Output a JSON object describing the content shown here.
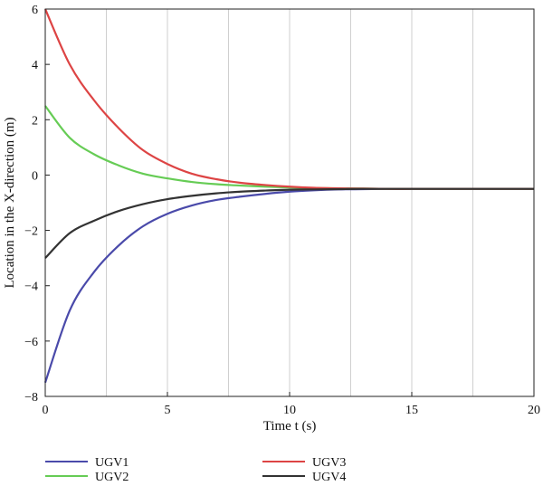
{
  "chart_data": {
    "type": "line",
    "title": "",
    "xlabel": "Time t (s)",
    "ylabel": "Location in the X-direction (m)",
    "xlim": [
      0,
      20
    ],
    "ylim": [
      -8,
      6
    ],
    "xticks": [
      0,
      5,
      10,
      15,
      20
    ],
    "yticks": [
      -8,
      -6,
      -4,
      -2,
      0,
      2,
      4,
      6
    ],
    "grid": {
      "vertical": true,
      "horizontal": false,
      "x_step": 2.5
    },
    "legend_placement": "bottom",
    "x": [
      0,
      1,
      2,
      3,
      4,
      5,
      6,
      7,
      8,
      9,
      10,
      11,
      12,
      13,
      14,
      15,
      16,
      17,
      18,
      19,
      20
    ],
    "series": [
      {
        "name": "UGV1",
        "color": "#4a4aaa",
        "values": [
          -7.5,
          -4.9,
          -3.5,
          -2.55,
          -1.85,
          -1.4,
          -1.1,
          -0.9,
          -0.78,
          -0.68,
          -0.6,
          -0.55,
          -0.52,
          -0.51,
          -0.5,
          -0.5,
          -0.5,
          -0.5,
          -0.5,
          -0.5,
          -0.5
        ]
      },
      {
        "name": "UGV2",
        "color": "#66cc55",
        "values": [
          2.5,
          1.35,
          0.75,
          0.35,
          0.05,
          -0.12,
          -0.25,
          -0.33,
          -0.38,
          -0.42,
          -0.45,
          -0.47,
          -0.48,
          -0.49,
          -0.5,
          -0.5,
          -0.5,
          -0.5,
          -0.5,
          -0.5,
          -0.5
        ]
      },
      {
        "name": "UGV3",
        "color": "#dd4444",
        "values": [
          6.0,
          4.0,
          2.7,
          1.7,
          0.9,
          0.4,
          0.05,
          -0.15,
          -0.28,
          -0.36,
          -0.42,
          -0.46,
          -0.48,
          -0.49,
          -0.5,
          -0.5,
          -0.5,
          -0.5,
          -0.5,
          -0.5,
          -0.5
        ]
      },
      {
        "name": "UGV4",
        "color": "#333333",
        "values": [
          -3.0,
          -2.1,
          -1.65,
          -1.3,
          -1.05,
          -0.87,
          -0.75,
          -0.66,
          -0.6,
          -0.56,
          -0.53,
          -0.52,
          -0.51,
          -0.5,
          -0.5,
          -0.5,
          -0.5,
          -0.5,
          -0.5,
          -0.5,
          -0.5
        ]
      }
    ]
  }
}
